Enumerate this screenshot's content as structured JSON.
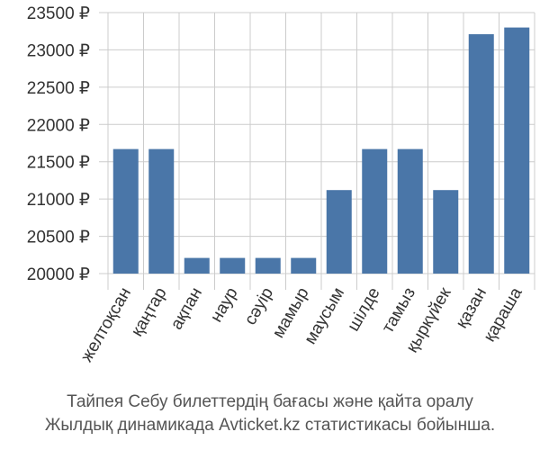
{
  "chart_data": {
    "type": "bar",
    "categories": [
      "желтоқсан",
      "қаңтар",
      "ақпан",
      "наур",
      "сәуір",
      "мамыр",
      "маусым",
      "шілде",
      "тамыз",
      "қыркүйек",
      "қазан",
      "қараша"
    ],
    "values": [
      21670,
      21670,
      20210,
      20210,
      20210,
      20210,
      21120,
      21670,
      21670,
      21120,
      23210,
      23300
    ],
    "y_tick_labels": [
      "20000 ₽",
      "20500 ₽",
      "21000 ₽",
      "21500 ₽",
      "22000 ₽",
      "22500 ₽",
      "23000 ₽",
      "23500 ₽"
    ],
    "y_ticks": [
      20000,
      20500,
      21000,
      21500,
      22000,
      22500,
      23000,
      23500
    ],
    "ylim": [
      20000,
      23500
    ],
    "grid": true,
    "bar_color": "#4a76a8",
    "caption_line1": "Тайпея Себу билеттердің бағасы және қайта оралу",
    "caption_line2": "Жылдық динамикада Avticket.kz статистикасы бойынша."
  }
}
